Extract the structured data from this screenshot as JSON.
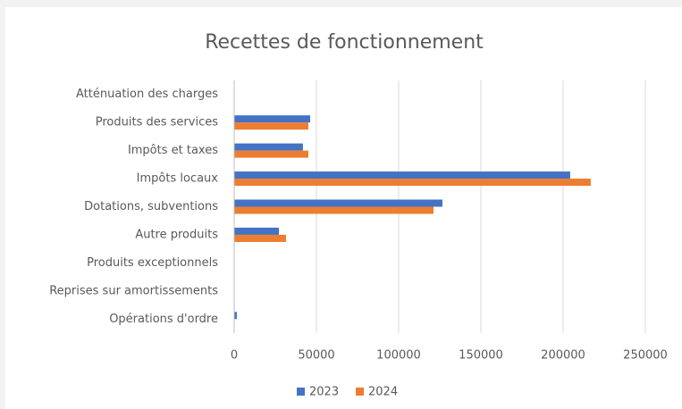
{
  "chart_data": {
    "type": "bar",
    "orientation": "horizontal",
    "title": "Recettes de fonctionnement",
    "categories": [
      "Atténuation des charges",
      "Produits des services",
      "Impôts et taxes",
      "Impôts locaux",
      "Dotations, subventions",
      "Autre produits",
      "Produits exceptionnels",
      "Reprises sur amortissements",
      "Opérations d'ordre"
    ],
    "series": [
      {
        "name": "2023",
        "color": "#4472c4",
        "values": [
          0,
          46200,
          41800,
          204300,
          126600,
          27200,
          0,
          0,
          1600
        ]
      },
      {
        "name": "2024",
        "color": "#ed7d31",
        "values": [
          0,
          45100,
          45100,
          216800,
          121200,
          31500,
          0,
          0,
          0
        ]
      }
    ],
    "xlim": [
      0,
      250000
    ],
    "xticks": [
      0,
      50000,
      100000,
      150000,
      200000,
      250000
    ],
    "grid": true,
    "legend": "bottom"
  }
}
